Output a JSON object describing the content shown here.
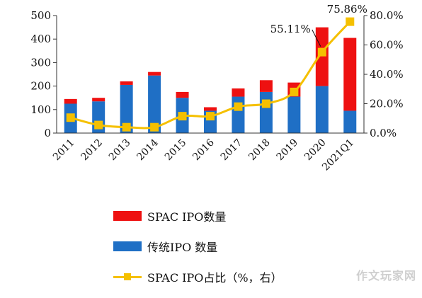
{
  "chart_data": {
    "type": "bar",
    "stacked": true,
    "categories": [
      "2011",
      "2012",
      "2013",
      "2014",
      "2015",
      "2016",
      "2017",
      "2018",
      "2019",
      "2020",
      "2021Q1"
    ],
    "series": [
      {
        "name": "传统IPO 数量",
        "color": "#1f6fc5",
        "axis": "left",
        "values": [
          125,
          135,
          205,
          245,
          150,
          95,
          155,
          175,
          155,
          200,
          95
        ]
      },
      {
        "name": "SPAC IPO数量",
        "color": "#ee1111",
        "axis": "left",
        "values": [
          20,
          15,
          15,
          15,
          25,
          15,
          35,
          50,
          60,
          250,
          310
        ]
      },
      {
        "name": "SPAC IPO占比（%，右）",
        "color": "#f5c000",
        "axis": "right",
        "type": "line",
        "values": [
          10.5,
          5.5,
          4,
          4,
          11.5,
          11.5,
          18,
          20,
          28,
          55.11,
          75.86
        ]
      }
    ],
    "y_left": {
      "min": 0,
      "max": 500,
      "ticks": [
        "0",
        "100",
        "200",
        "300",
        "400",
        "500"
      ]
    },
    "y_right": {
      "min": 0,
      "max": 80,
      "ticks": [
        "0.0%",
        "20.0%",
        "40.0%",
        "60.0%",
        "80.0%"
      ]
    },
    "annotations": [
      {
        "text": "55.11%",
        "category": "2020"
      },
      {
        "text": "75.86%",
        "category": "2021Q1"
      }
    ],
    "legend_position": "bottom"
  },
  "legend": [
    {
      "label": "SPAC IPO数量",
      "kind": "bar",
      "color": "#ee1111"
    },
    {
      "label": "传统IPO 数量",
      "kind": "bar",
      "color": "#1f6fc5"
    },
    {
      "label": "SPAC IPO占比（%，右）",
      "kind": "line",
      "color": "#f5c000"
    }
  ],
  "watermark": "作文玩家网"
}
